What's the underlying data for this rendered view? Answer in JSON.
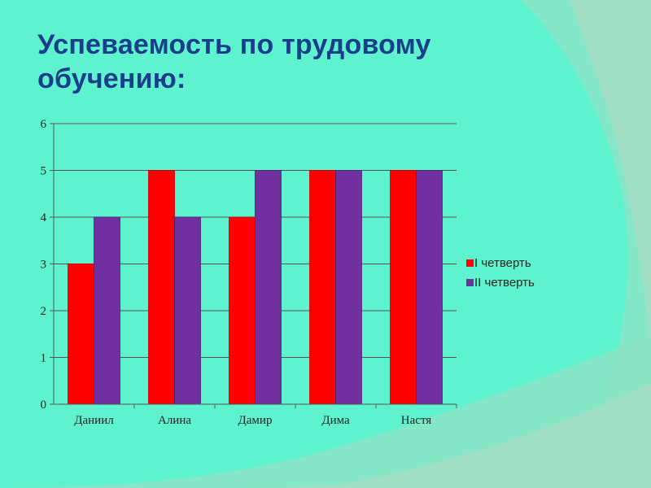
{
  "slide": {
    "title": "Успеваемость по трудовому обучению:"
  },
  "colors": {
    "background": "#5ff2cf",
    "title": "#1a3f8a",
    "series_1": "#ff0000",
    "series_2": "#7030a0",
    "gridline": "#555555"
  },
  "chart_data": {
    "type": "bar",
    "title": "Успеваемость по трудовому обучению:",
    "xlabel": "",
    "ylabel": "",
    "categories": [
      "Даниил",
      "Алина",
      "Дамир",
      "Дима",
      "Настя"
    ],
    "series": [
      {
        "name": "I четверть",
        "color": "#ff0000",
        "values": [
          3,
          5,
          4,
          5,
          5
        ]
      },
      {
        "name": "II четверть",
        "color": "#7030a0",
        "values": [
          4,
          4,
          5,
          5,
          5
        ]
      }
    ],
    "ylim": [
      0,
      6
    ],
    "yticks": [
      "0",
      "1",
      "2",
      "3",
      "4",
      "5",
      "6"
    ],
    "grid": true,
    "legend_position": "right"
  }
}
